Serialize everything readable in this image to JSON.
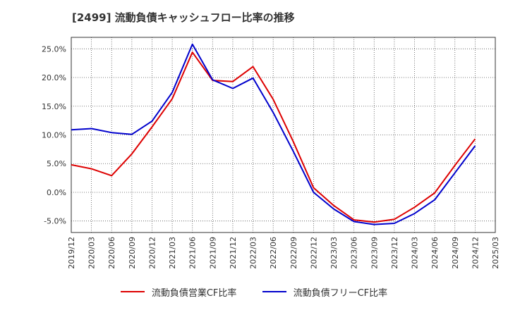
{
  "title": "[2499]  流動負債キャッシュフロー比率の推移",
  "colors": {
    "grid": "#555555",
    "frame": "#333333",
    "background": "#ffffff"
  },
  "chart_data": {
    "type": "line",
    "title": "[2499]  流動負債キャッシュフロー比率の推移",
    "xlabel": "",
    "ylabel": "",
    "ylim": [
      -7,
      27
    ],
    "yticks": [
      25,
      20,
      15,
      10,
      5,
      0,
      -5
    ],
    "ytick_labels": [
      "25.0%",
      "20.0%",
      "15.0%",
      "10.0%",
      "5.0%",
      "0.0%",
      "-5.0%"
    ],
    "xtick_labels": [
      "2019/12",
      "2020/03",
      "2020/06",
      "2020/09",
      "2020/12",
      "2021/03",
      "2021/06",
      "2021/09",
      "2021/12",
      "2022/03",
      "2022/06",
      "2022/09",
      "2022/12",
      "2023/03",
      "2023/06",
      "2023/09",
      "2023/12",
      "2024/03",
      "2024/06",
      "2024/09",
      "2024/12",
      "2025/03"
    ],
    "grid": true,
    "legend_position": "bottom",
    "series": [
      {
        "name": "流動負債営業CF比率",
        "color": "#dd0000",
        "values": [
          4.8,
          4.1,
          2.9,
          6.7,
          11.4,
          16.3,
          24.4,
          19.5,
          19.3,
          21.9,
          16.2,
          8.8,
          0.8,
          -2.3,
          -4.8,
          -5.2,
          -4.7,
          -2.6,
          -0.1,
          4.7,
          9.3,
          null
        ]
      },
      {
        "name": "流動負債フリーCF比率",
        "color": "#0000cc",
        "values": [
          10.9,
          11.1,
          10.4,
          10.1,
          12.4,
          17.4,
          25.8,
          19.6,
          18.1,
          19.9,
          13.9,
          7.1,
          0.0,
          -2.9,
          -5.1,
          -5.6,
          -5.4,
          -3.7,
          -1.3,
          3.4,
          8.1,
          null
        ]
      }
    ]
  }
}
